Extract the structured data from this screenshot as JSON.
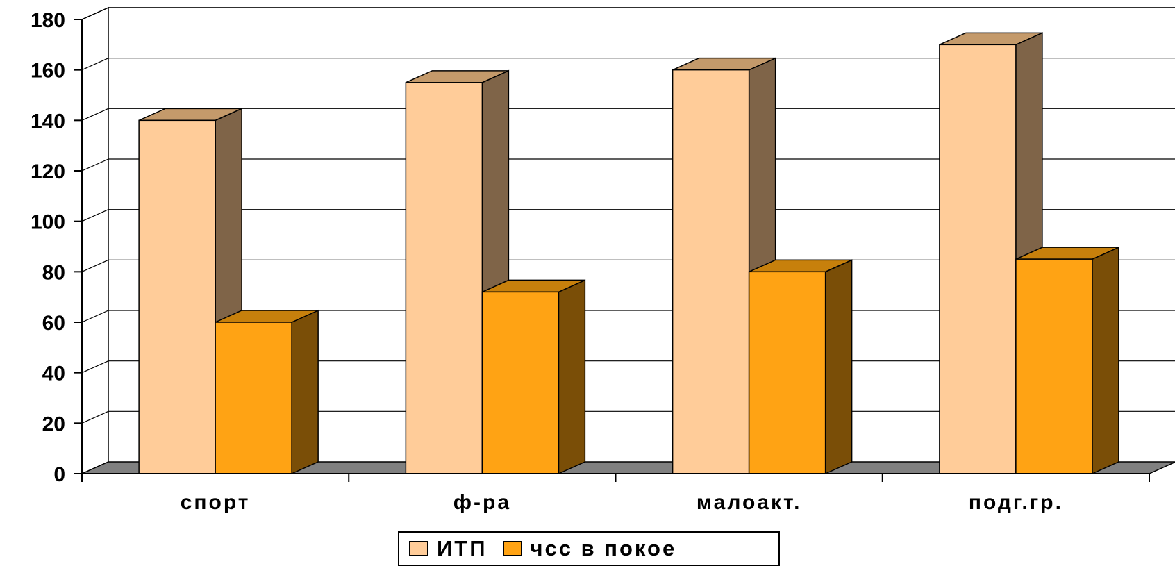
{
  "chart_data": {
    "type": "bar",
    "categories": [
      "спорт",
      "ф-ра",
      "малоакт.",
      "подг.гр."
    ],
    "series": [
      {
        "name": "ИТП",
        "values": [
          140,
          155,
          160,
          170
        ],
        "color": "#FFCC99"
      },
      {
        "name": "чсс в покое",
        "values": [
          60,
          72,
          80,
          85
        ],
        "color": "#FFA314"
      }
    ],
    "ylim": [
      0,
      180
    ],
    "yticks": [
      "0",
      "20",
      "40",
      "60",
      "80",
      "100",
      "120",
      "140",
      "160",
      "180"
    ],
    "grid": true,
    "legend": "bottom",
    "title": "",
    "xlabel": "",
    "ylabel": ""
  }
}
